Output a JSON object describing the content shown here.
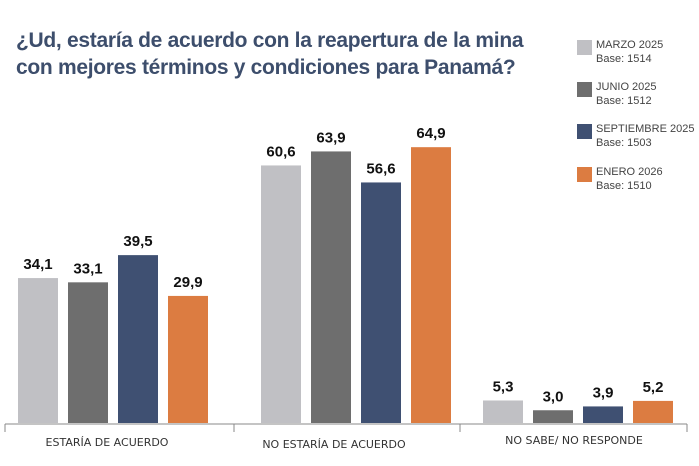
{
  "chart_data": {
    "type": "bar",
    "title": "¿Ud, estaría de acuerdo con la reapertura de la mina con mejores términos y condiciones para Panamá?",
    "categories": [
      "ESTARÍA DE ACUERDO",
      "NO ESTARÍA DE ACUERDO",
      "NO SABE/ NO RESPONDE"
    ],
    "series": [
      {
        "name": "MARZO 2025",
        "base": "Base: 1514",
        "color": "#c0c0c4",
        "values": [
          34.1,
          60.6,
          5.3
        ],
        "labels": [
          "34,1",
          "60,6",
          "5,3"
        ]
      },
      {
        "name": "JUNIO 2025",
        "base": "Base: 1512",
        "color": "#6e6e6e",
        "values": [
          33.1,
          63.9,
          3.0
        ],
        "labels": [
          "33,1",
          "63,9",
          "3,0"
        ]
      },
      {
        "name": "SEPTIEMBRE 2025",
        "base": "Base: 1503",
        "color": "#3f5072",
        "values": [
          39.5,
          56.6,
          3.9
        ],
        "labels": [
          "39,5",
          "56,6",
          "3,9"
        ]
      },
      {
        "name": "ENERO 2026",
        "base": "Base: 1510",
        "color": "#dc7c41",
        "values": [
          29.9,
          64.9,
          5.2
        ],
        "labels": [
          "29,9",
          "64,9",
          "5,2"
        ]
      }
    ],
    "legend_position": "top-right",
    "grid": false,
    "ylim": [
      0,
      65
    ]
  }
}
